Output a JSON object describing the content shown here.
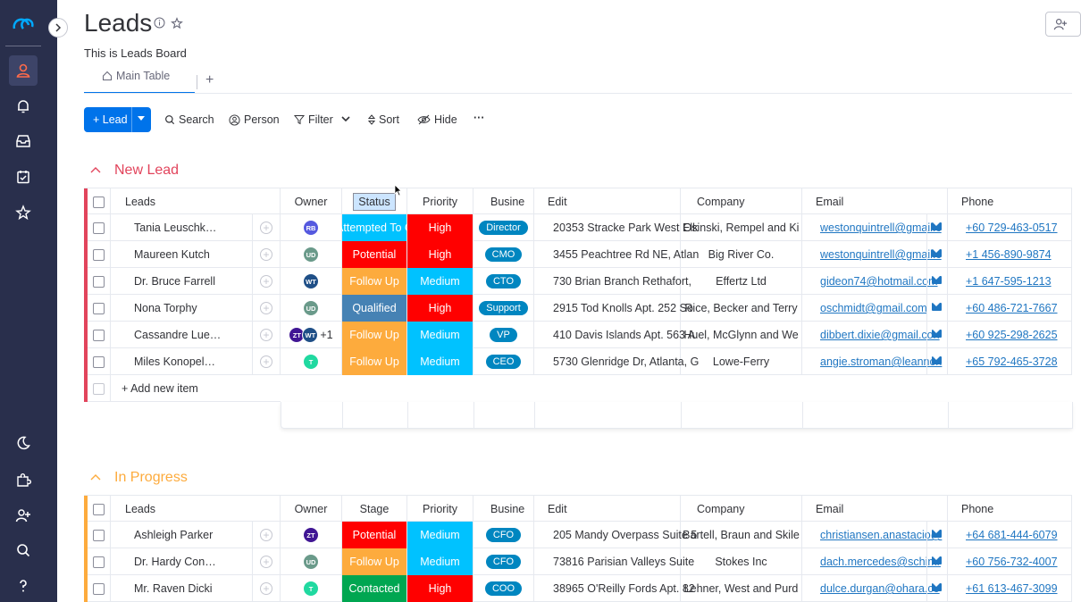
{
  "board": {
    "title": "Leads",
    "subtitle": "This is Leads Board",
    "tab_main": "Main Table",
    "tab_add": "+"
  },
  "toolbar": {
    "new_button": "+ Lead",
    "search": "Search",
    "person": "Person",
    "filter": "Filter",
    "sort": "Sort",
    "hide": "Hide",
    "more": "···"
  },
  "columns": {
    "owner": "Owner",
    "status": "Status",
    "stage": "Stage",
    "priority": "Priority",
    "business": "Busine",
    "edit": "Edit",
    "company": "Company",
    "email": "Email",
    "phone": "Phone",
    "leads": "Leads"
  },
  "colors": {
    "rail": "#292f4c",
    "accent": "#0073ea",
    "new_lead_group": "#e2445c",
    "in_progress_group": "#fdab3d",
    "high": "#ff0000",
    "medium": "#00c2ff",
    "attempted": "#00c2ff",
    "potential": "#ff0000",
    "follow_up": "#fdab3d",
    "qualified": "#4682b4",
    "contacted": "#00a651"
  },
  "groups": [
    {
      "name": "New Lead",
      "add_item": "+ Add new item",
      "rows": [
        {
          "lead": "Tania Leuschk…",
          "owners": [
            {
              "initials": "RB",
              "color": "#5559df"
            }
          ],
          "owner_extra": "",
          "status": "Attempted To C",
          "status_color": "#00c2ff",
          "priority": "High",
          "priority_color": "#ff0000",
          "business": "Director",
          "edit": "20353 Stracke Park West Elk",
          "company": "Osinski, Rempel and Ki",
          "email": "westonquintrell@gmail.c",
          "phone": "+60 729-463-0517"
        },
        {
          "lead": "Maureen Kutch",
          "owners": [
            {
              "initials": "UD",
              "color": "#6a9a8a"
            }
          ],
          "owner_extra": "",
          "status": "Potential",
          "status_color": "#ff0000",
          "priority": "High",
          "priority_color": "#ff0000",
          "business": "CMO",
          "edit": "3455 Peachtree Rd NE, Atlan",
          "company": "Big River Co.",
          "email": "westonquintrell@gmail.c",
          "phone": "+1 456-890-9874"
        },
        {
          "lead": "Dr. Bruce Farrell",
          "owners": [
            {
              "initials": "WT",
              "color": "#1f4f87"
            }
          ],
          "owner_extra": "",
          "status": "Follow Up",
          "status_color": "#fdab3d",
          "priority": "Medium",
          "priority_color": "#00c2ff",
          "business": "CTO",
          "edit": "730 Brian Branch Rethafort,",
          "company": "Effertz Ltd",
          "email": "gideon74@hotmail.com",
          "phone": "+1 647-595-1213"
        },
        {
          "lead": "Nona Torphy",
          "owners": [
            {
              "initials": "UD",
              "color": "#6a9a8a"
            }
          ],
          "owner_extra": "",
          "status": "Qualified",
          "status_color": "#4682b4",
          "priority": "High",
          "priority_color": "#ff0000",
          "business": "Support",
          "edit": "2915 Tod Knolls Apt. 252 So",
          "company": "Rice, Becker and Terry",
          "email": "oschmidt@gmail.com",
          "phone": "+60 486-721-7667"
        },
        {
          "lead": "Cassandre Lue…",
          "owners": [
            {
              "initials": "ZT",
              "color": "#401694"
            },
            {
              "initials": "WT",
              "color": "#1f4f87"
            }
          ],
          "owner_extra": "+1",
          "status": "Follow Up",
          "status_color": "#fdab3d",
          "priority": "Medium",
          "priority_color": "#00c2ff",
          "business": "VP",
          "edit": "410 Davis Islands Apt. 563 A",
          "company": "Huel, McGlynn and We",
          "email": "dibbert.dixie@gmail.con",
          "phone": "+60 925-298-2625"
        },
        {
          "lead": "Miles Konopel…",
          "owners": [
            {
              "initials": "T",
              "color": "#20d9a0"
            }
          ],
          "owner_extra": "",
          "status": "Follow Up",
          "status_color": "#fdab3d",
          "priority": "Medium",
          "priority_color": "#00c2ff",
          "business": "CEO",
          "edit": "5730 Glenridge Dr, Atlanta, G",
          "company": "Lowe-Ferry",
          "email": "angie.stroman@leannon",
          "phone": "+65 792-465-3728"
        }
      ]
    },
    {
      "name": "In Progress",
      "rows": [
        {
          "lead": "Ashleigh Parker",
          "owners": [
            {
              "initials": "ZT",
              "color": "#401694"
            }
          ],
          "owner_extra": "",
          "status": "Potential",
          "status_color": "#ff0000",
          "priority": "Medium",
          "priority_color": "#00c2ff",
          "business": "CFO",
          "edit": "205 Mandy Overpass Suite 5",
          "company": "Bartell, Braun and Skile",
          "email": "christiansen.anastacio@",
          "phone": "+64 681-444-6079"
        },
        {
          "lead": "Dr. Hardy Con…",
          "owners": [
            {
              "initials": "UD",
              "color": "#6a9a8a"
            }
          ],
          "owner_extra": "",
          "status": "Follow Up",
          "status_color": "#fdab3d",
          "priority": "Medium",
          "priority_color": "#00c2ff",
          "business": "CFO",
          "edit": "73816 Parisian Valleys Suite",
          "company": "Stokes Inc",
          "email": "dach.mercedes@schimr",
          "phone": "+60 756-732-4007"
        },
        {
          "lead": "Mr. Raven Dicki",
          "owners": [
            {
              "initials": "T",
              "color": "#20d9a0"
            }
          ],
          "owner_extra": "",
          "status": "Contacted",
          "status_color": "#00a651",
          "priority": "High",
          "priority_color": "#ff0000",
          "business": "COO",
          "edit": "38965 O'Reilly Fords Apt. 82",
          "company": "Lehner, West and Purd",
          "email": "dulce.durgan@ohara.co",
          "phone": "+61 613-467-3099"
        }
      ]
    }
  ]
}
